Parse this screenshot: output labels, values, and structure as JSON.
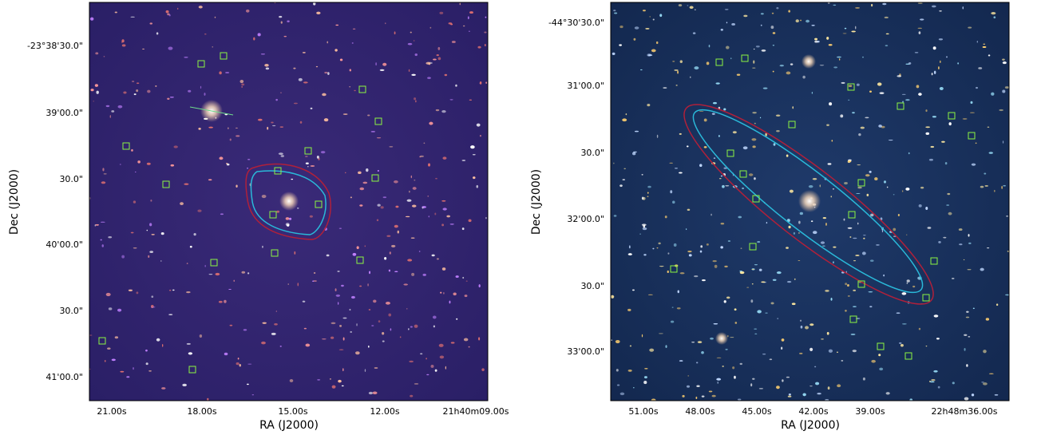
{
  "panels": [
    {
      "xlabel": "RA (J2000)",
      "ylabel": "Dec (J2000)",
      "xticks": [
        "21.00s",
        "18.00s",
        "15.00s",
        "12.00s",
        "21h40m09.00s"
      ],
      "yticks": [
        "-23°38'30.0\"",
        "39'00.0\"",
        "30.0\"",
        "40'00.0\"",
        "30.0\"",
        "41'00.0\""
      ]
    },
    {
      "xlabel": "RA (J2000)",
      "ylabel": "Dec (J2000)",
      "xticks": [
        "51.00s",
        "48.00s",
        "45.00s",
        "42.00s",
        "39.00s",
        "22h48m36.00s"
      ],
      "yticks": [
        "-44°30'30.0\"",
        "31'00.0\"",
        "30.0\"",
        "32'00.0\"",
        "30.0\"",
        "33'00.0\""
      ]
    }
  ]
}
